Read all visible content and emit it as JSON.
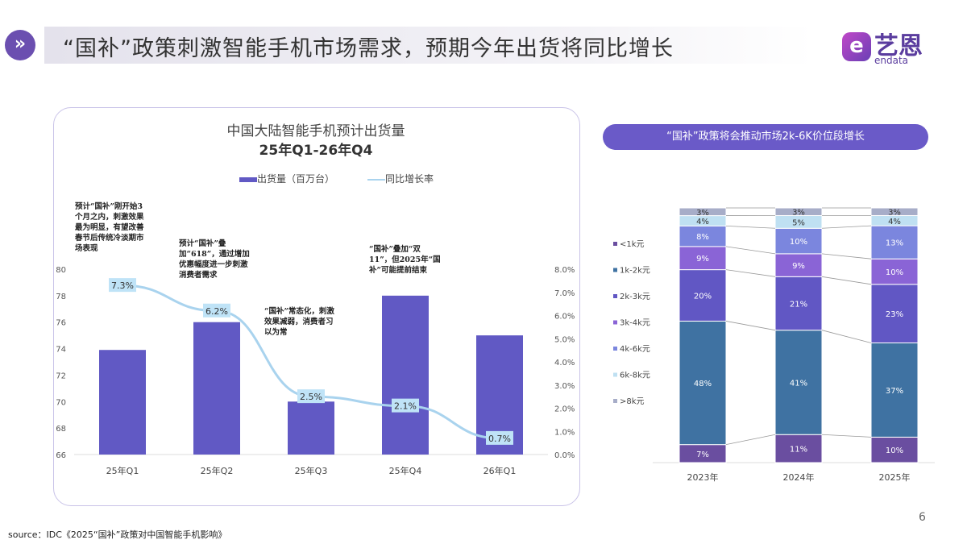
{
  "header": {
    "title": "“国补”政策刺激智能手机市场需求，预期今年出货将同比增长",
    "icon": "double-chevron-right-icon"
  },
  "logo": {
    "cn": "艺恩",
    "en": "endata"
  },
  "chart_data": [
    {
      "type": "bar+line",
      "title": "中国大陆智能手机预计出货量",
      "subtitle": "25年Q1-26年Q4",
      "categories": [
        "25年Q1",
        "25年Q2",
        "25年Q3",
        "25年Q4",
        "26年Q1"
      ],
      "series": [
        {
          "name": "出货量（百万台）",
          "type": "bar",
          "axis": "left",
          "color": "#6159c4",
          "values": [
            73.9,
            76,
            70,
            78,
            75
          ]
        },
        {
          "name": "同比增长率",
          "type": "line",
          "axis": "right",
          "color": "#a9d3ee",
          "values": [
            7.3,
            6.2,
            2.5,
            2.1,
            0.7
          ],
          "labels": [
            "7.3%",
            "6.2%",
            "2.5%",
            "2.1%",
            "0.7%"
          ]
        }
      ],
      "ylim": [
        66,
        80
      ],
      "yticks": [
        "66",
        "68",
        "70",
        "72",
        "74",
        "76",
        "78",
        "80"
      ],
      "y2lim": [
        0,
        8
      ],
      "y2ticks": [
        "0.0%",
        "1.0%",
        "2.0%",
        "3.0%",
        "4.0%",
        "5.0%",
        "6.0%",
        "7.0%",
        "8.0%"
      ],
      "legend": "top",
      "grid": false,
      "annotations": [
        "预计“国补”刚开始3个月之内，刺激效果最为明显，有望改善春节后传统冷淡期市场表现",
        "预计“国补”叠加“618”，通过增加优惠幅度进一步刺激消费者需求",
        "“国补”常态化，刺激效果减弱，消费者习以为常",
        "“国补”叠加“双11”，但2025年“国补”可能提前结束"
      ]
    },
    {
      "type": "stacked-bar-100",
      "title": "“国补”政策将会推动市场2k-6K价位段增长",
      "categories": [
        "2023年",
        "2024年",
        "2025年"
      ],
      "series": [
        {
          "name": "<1k元",
          "color": "#6a4ea0",
          "values": [
            7,
            11,
            10
          ]
        },
        {
          "name": "1k-2k元",
          "color": "#3f72a2",
          "values": [
            48,
            41,
            37
          ]
        },
        {
          "name": "2k-3k元",
          "color": "#6157c4",
          "values": [
            20,
            21,
            23
          ]
        },
        {
          "name": "3k-4k元",
          "color": "#8a64d6",
          "values": [
            9,
            9,
            10
          ]
        },
        {
          "name": "4k-6k元",
          "color": "#7b86de",
          "values": [
            8,
            10,
            13
          ]
        },
        {
          "name": "6k-8k元",
          "color": "#bfe0f2",
          "values": [
            4,
            5,
            4
          ]
        },
        {
          "name": ">8k元",
          "color": "#a7adc8",
          "values": [
            3,
            3,
            3
          ]
        }
      ],
      "legend": "left",
      "unit": "%"
    }
  ],
  "footer": {
    "page": "6",
    "source": "source：IDC《2025“国补”政策对中国智能手机影响》"
  }
}
